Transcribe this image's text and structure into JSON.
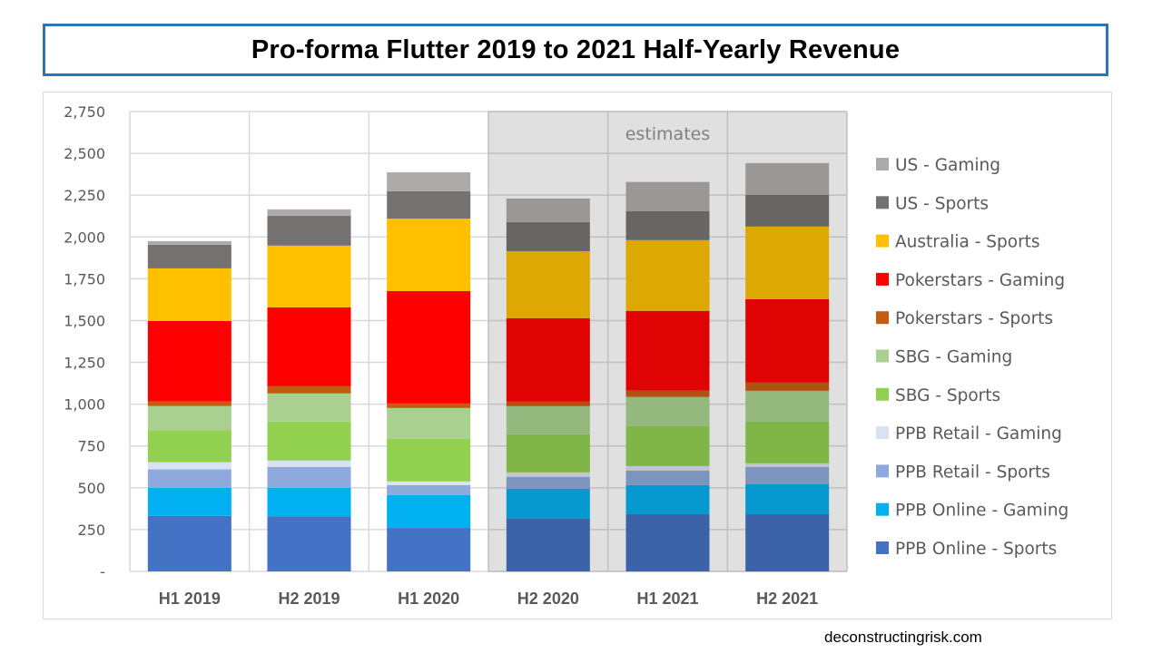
{
  "title": "Pro-forma Flutter 2019 to 2021 Half-Yearly Revenue",
  "footer": "deconstructingrisk.com",
  "chart_data": {
    "type": "bar",
    "stacked": true,
    "title": "Pro-forma Flutter 2019 to 2021 Half-Yearly Revenue",
    "xlabel": "",
    "ylabel": "",
    "ylim": [
      0,
      2750
    ],
    "yticks": [
      0,
      250,
      500,
      750,
      1000,
      1250,
      1500,
      1750,
      2000,
      2250,
      2500,
      2750
    ],
    "ytick_labels": [
      "-",
      "250",
      "500",
      "750",
      "1,000",
      "1,250",
      "1,500",
      "1,750",
      "2,000",
      "2,250",
      "2,500",
      "2,750"
    ],
    "grid": true,
    "legend_position": "right",
    "categories": [
      "H1 2019",
      "H2 2019",
      "H1 2020",
      "H2 2020",
      "H1 2021",
      "H2 2021"
    ],
    "estimates_region": {
      "label": "estimates",
      "categories": [
        "H2 2020",
        "H1 2021",
        "H2 2021"
      ]
    },
    "series": [
      {
        "name": "PPB Online - Sports",
        "color": "#4472C4",
        "estimate_color": "#3C63A8",
        "values": [
          332,
          330,
          260,
          315,
          342,
          342
        ]
      },
      {
        "name": "PPB Online - Gaming",
        "color": "#00B0F0",
        "estimate_color": "#0599CF",
        "values": [
          168,
          170,
          196,
          179,
          174,
          179
        ]
      },
      {
        "name": "PPB Retail - Sports",
        "color": "#8EA9DB",
        "estimate_color": "#7D94BE",
        "values": [
          110,
          125,
          60,
          71,
          87,
          103
        ]
      },
      {
        "name": "PPB Retail - Gaming",
        "color": "#D9E1F2",
        "estimate_color": "#BEC4D1",
        "values": [
          43,
          38,
          22,
          27,
          27,
          22
        ]
      },
      {
        "name": "SBG - Sports",
        "color": "#92D050",
        "estimate_color": "#80B548",
        "values": [
          190,
          233,
          255,
          228,
          239,
          250
        ]
      },
      {
        "name": "SBG - Gaming",
        "color": "#A9D08E",
        "estimate_color": "#95B87E",
        "values": [
          146,
          168,
          184,
          168,
          174,
          184
        ]
      },
      {
        "name": "Pokerstars - Sports",
        "color": "#C55A11",
        "estimate_color": "#AE5212",
        "values": [
          27,
          43,
          27,
          27,
          38,
          49
        ]
      },
      {
        "name": "Pokerstars - Gaming",
        "color": "#FF0000",
        "estimate_color": "#DF0303",
        "values": [
          481,
          472,
          672,
          499,
          477,
          499
        ]
      },
      {
        "name": "Australia - Sports",
        "color": "#FFC000",
        "estimate_color": "#DEA803",
        "values": [
          315,
          369,
          434,
          401,
          423,
          434
        ]
      },
      {
        "name": "US - Sports",
        "color": "#767171",
        "estimate_color": "#686563",
        "values": [
          141,
          179,
          163,
          174,
          174,
          190
        ]
      },
      {
        "name": "US - Gaming",
        "color": "#AEAAAA",
        "estimate_color": "#9A9796",
        "values": [
          22,
          38,
          114,
          141,
          174,
          190
        ]
      }
    ],
    "legend_order": [
      "US - Gaming",
      "US - Sports",
      "Australia - Sports",
      "Pokerstars - Gaming",
      "Pokerstars - Sports",
      "SBG - Gaming",
      "SBG - Sports",
      "PPB Retail - Gaming",
      "PPB Retail - Sports",
      "PPB Online - Gaming",
      "PPB Online - Sports"
    ]
  }
}
